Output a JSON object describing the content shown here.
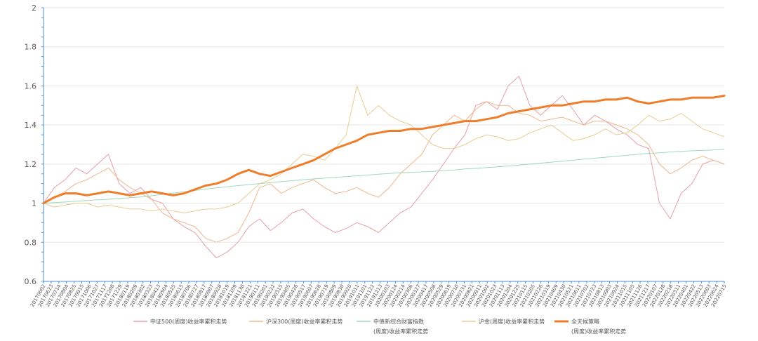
{
  "chart_data": {
    "type": "line",
    "title": "",
    "xlabel": "",
    "ylabel": "",
    "ylim": [
      0.6,
      2.0
    ],
    "yticks": [
      "0.6",
      "0.8",
      "1",
      "1.2",
      "1.4",
      "1.6",
      "1.8",
      "2"
    ],
    "grid": true,
    "legend_position": "bottom",
    "x_tick_labels": [
      "20170602",
      "20170623",
      "20170714",
      "20170804",
      "20170825",
      "20170915",
      "20171006",
      "20171027",
      "20171117",
      "20171208",
      "20171229",
      "20180119",
      "20180209",
      "20180302",
      "20180323",
      "20180413",
      "20180504",
      "20180525",
      "20180615",
      "20180706",
      "20180727",
      "20180817",
      "20180907",
      "20180928",
      "20181019",
      "20181109",
      "20181130",
      "20181221",
      "20190111",
      "20190201",
      "20190222",
      "20190315",
      "20190405",
      "20190426",
      "20190517",
      "20190607",
      "20190628",
      "20190719",
      "20190809",
      "20190830",
      "20190920",
      "20191011",
      "20191101",
      "20191122",
      "20191213",
      "20200103",
      "20200124",
      "20200214",
      "20200306",
      "20200327",
      "20200417",
      "20200508",
      "20200529",
      "20200619",
      "20200710",
      "20200731",
      "20200821",
      "20200911",
      "20201002",
      "20201023",
      "20201113",
      "20201204",
      "20201225",
      "20210115",
      "20210205",
      "20210226",
      "20210319",
      "20210409",
      "20210430",
      "20210521",
      "20210611",
      "20210702",
      "20210723",
      "20210813",
      "20210903",
      "20210924",
      "20211015",
      "20211105",
      "20211126",
      "20211217",
      "20220107",
      "20220128",
      "20220218",
      "20220311",
      "20220401",
      "20220422",
      "20220513",
      "20220603",
      "20220624",
      "20220715"
    ],
    "series": [
      {
        "name": "中证500(周度)收益率累积走势",
        "color": "#e8a0a8",
        "width": 1,
        "values": [
          1.0,
          1.08,
          1.12,
          1.18,
          1.15,
          1.2,
          1.25,
          1.1,
          1.05,
          1.08,
          1.02,
          1.0,
          0.92,
          0.88,
          0.85,
          0.78,
          0.72,
          0.75,
          0.8,
          0.88,
          0.92,
          0.86,
          0.9,
          0.95,
          0.97,
          0.92,
          0.88,
          0.85,
          0.87,
          0.9,
          0.88,
          0.85,
          0.9,
          0.95,
          0.98,
          1.05,
          1.12,
          1.2,
          1.28,
          1.35,
          1.5,
          1.52,
          1.48,
          1.6,
          1.65,
          1.5,
          1.45,
          1.5,
          1.55,
          1.48,
          1.4,
          1.45,
          1.42,
          1.38,
          1.35,
          1.3,
          1.28,
          1.0,
          0.92,
          1.05,
          1.1,
          1.2,
          1.22,
          1.2
        ]
      },
      {
        "name": "沪深300(周度)收益率累积走势",
        "color": "#f0b78c",
        "width": 1,
        "values": [
          1.0,
          1.03,
          1.06,
          1.1,
          1.12,
          1.15,
          1.18,
          1.12,
          1.08,
          1.05,
          1.02,
          0.95,
          0.92,
          0.9,
          0.88,
          0.82,
          0.8,
          0.82,
          0.85,
          0.95,
          1.08,
          1.1,
          1.05,
          1.08,
          1.1,
          1.12,
          1.08,
          1.05,
          1.06,
          1.08,
          1.05,
          1.03,
          1.08,
          1.15,
          1.2,
          1.25,
          1.35,
          1.4,
          1.45,
          1.42,
          1.48,
          1.52,
          1.5,
          1.5,
          1.46,
          1.45,
          1.42,
          1.43,
          1.44,
          1.42,
          1.4,
          1.42,
          1.42,
          1.4,
          1.38,
          1.35,
          1.3,
          1.2,
          1.15,
          1.18,
          1.22,
          1.24,
          1.22,
          1.2
        ]
      },
      {
        "name": "中债新综合财富指数(周度)收益率累积走势",
        "color": "#9fd9b8",
        "width": 1,
        "values": [
          1.0,
          1.003,
          1.006,
          1.01,
          1.014,
          1.017,
          1.02,
          1.024,
          1.028,
          1.032,
          1.038,
          1.045,
          1.052,
          1.058,
          1.065,
          1.072,
          1.078,
          1.084,
          1.09,
          1.095,
          1.1,
          1.105,
          1.11,
          1.115,
          1.12,
          1.124,
          1.128,
          1.132,
          1.136,
          1.14,
          1.144,
          1.148,
          1.152,
          1.156,
          1.158,
          1.16,
          1.163,
          1.166,
          1.17,
          1.175,
          1.178,
          1.182,
          1.186,
          1.19,
          1.195,
          1.2,
          1.205,
          1.21,
          1.215,
          1.22,
          1.225,
          1.23,
          1.235,
          1.24,
          1.245,
          1.25,
          1.255,
          1.258,
          1.262,
          1.265,
          1.268,
          1.27,
          1.272,
          1.275
        ]
      },
      {
        "name": "沪金(周度)收益率累积走势",
        "color": "#e6cf93",
        "width": 1,
        "values": [
          1.0,
          0.98,
          0.99,
          1.0,
          1.0,
          0.98,
          0.99,
          0.98,
          0.97,
          0.97,
          0.96,
          0.97,
          0.96,
          0.95,
          0.96,
          0.97,
          0.97,
          0.98,
          1.0,
          1.05,
          1.1,
          1.12,
          1.15,
          1.2,
          1.25,
          1.24,
          1.22,
          1.28,
          1.35,
          1.6,
          1.45,
          1.5,
          1.45,
          1.42,
          1.4,
          1.35,
          1.3,
          1.28,
          1.28,
          1.3,
          1.33,
          1.35,
          1.34,
          1.32,
          1.33,
          1.36,
          1.38,
          1.4,
          1.36,
          1.32,
          1.33,
          1.35,
          1.38,
          1.35,
          1.36,
          1.4,
          1.45,
          1.42,
          1.43,
          1.46,
          1.42,
          1.38,
          1.36,
          1.34
        ]
      },
      {
        "name": "全天候策略(周度)收益率累积走势",
        "color": "#ee7d2c",
        "width": 3,
        "values": [
          1.0,
          1.03,
          1.05,
          1.05,
          1.04,
          1.05,
          1.06,
          1.05,
          1.04,
          1.05,
          1.06,
          1.05,
          1.04,
          1.05,
          1.07,
          1.09,
          1.1,
          1.12,
          1.15,
          1.17,
          1.15,
          1.14,
          1.16,
          1.18,
          1.2,
          1.22,
          1.25,
          1.28,
          1.3,
          1.32,
          1.35,
          1.36,
          1.37,
          1.37,
          1.38,
          1.38,
          1.39,
          1.4,
          1.41,
          1.42,
          1.42,
          1.43,
          1.44,
          1.46,
          1.47,
          1.48,
          1.49,
          1.5,
          1.5,
          1.51,
          1.52,
          1.52,
          1.53,
          1.53,
          1.54,
          1.52,
          1.51,
          1.52,
          1.53,
          1.53,
          1.54,
          1.54,
          1.54,
          1.55
        ]
      }
    ]
  },
  "legend": {
    "items": [
      {
        "line1": "中证500(周度)收益率累积走势",
        "line2": ""
      },
      {
        "line1": "沪深300(周度)收益率累积走势",
        "line2": ""
      },
      {
        "line1": "中债新综合财富指数",
        "line2": "(周度)收益率累积走势"
      },
      {
        "line1": "沪金(周度)收益率累积走势",
        "line2": ""
      },
      {
        "line1": "全天候策略",
        "line2": "(周度)收益率累积走势"
      }
    ]
  }
}
